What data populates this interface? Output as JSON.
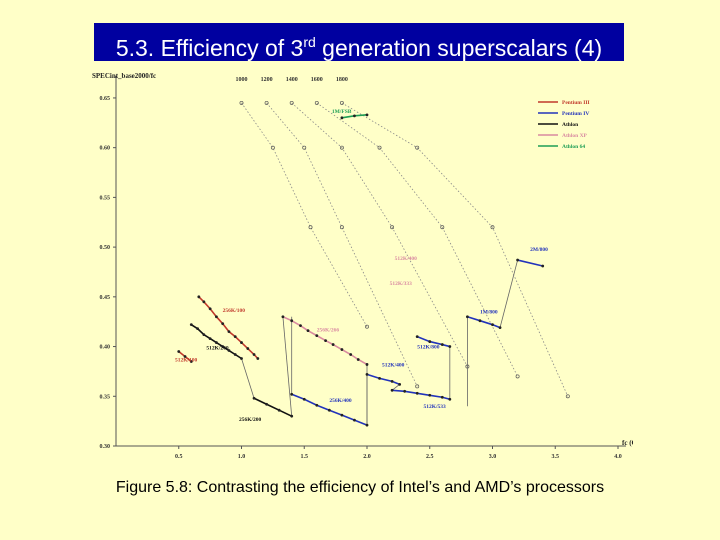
{
  "slide": {
    "title_main": "5.3. Efficiency of 3",
    "title_sup": "rd",
    "title_rest": " generation superscalars (4)",
    "caption": "Figure 5.8: Contrasting the efficiency of Intel’s and AMD’s processors"
  },
  "chart_data": {
    "type": "line",
    "ylabel": "SPECint_base2000/fc",
    "xlabel": "fc (GHz)",
    "xlim": [
      0.0,
      4.0
    ],
    "ylim": [
      0.3,
      0.66
    ],
    "xticks": [
      0.5,
      1.0,
      1.5,
      2.0,
      2.5,
      3.0,
      3.5,
      4.0
    ],
    "xtick_labels": [
      "0.5",
      "1.0",
      "1.5",
      "2.0",
      "2.5",
      "3.0",
      "3.5",
      "4.0"
    ],
    "yticks": [
      0.3,
      0.35,
      0.4,
      0.45,
      0.5,
      0.55,
      0.6,
      0.65
    ],
    "ytick_labels": [
      "0.30",
      "0.35",
      "0.40",
      "0.45",
      "0.50",
      "0.55",
      "0.60",
      "0.65"
    ],
    "top_labels": [
      {
        "x": 1.0,
        "text": "1000"
      },
      {
        "x": 1.2,
        "text": "1200"
      },
      {
        "x": 1.4,
        "text": "1400"
      },
      {
        "x": 1.6,
        "text": "1600"
      },
      {
        "x": 1.8,
        "text": "1800"
      }
    ],
    "legend": {
      "placement": "top-right",
      "entries": [
        {
          "name": "Pentium III",
          "color": "#c0392b"
        },
        {
          "name": "Pentium IV",
          "color": "#2233bb"
        },
        {
          "name": "Athlon",
          "color": "#111111"
        },
        {
          "name": "Athlon XP",
          "color": "#d98aa0"
        },
        {
          "name": "Athlon 64",
          "color": "#1e9e55"
        }
      ]
    },
    "series": [
      {
        "name": "Pentium III",
        "color": "#c0392b",
        "x": [
          0.5,
          0.55,
          0.6
        ],
        "y": [
          0.395,
          0.39,
          0.385
        ]
      },
      {
        "name": "Pentium III",
        "color": "#c0392b",
        "x": [
          0.66,
          0.7,
          0.75,
          0.8,
          0.85,
          0.9,
          0.95,
          1.0,
          1.05,
          1.1,
          1.13
        ],
        "y": [
          0.45,
          0.445,
          0.438,
          0.43,
          0.423,
          0.415,
          0.41,
          0.404,
          0.398,
          0.392,
          0.388
        ]
      },
      {
        "name": "Athlon",
        "color": "#111111",
        "x": [
          0.6,
          0.65,
          0.7,
          0.75,
          0.8,
          0.85,
          0.9,
          0.95,
          1.0
        ],
        "y": [
          0.422,
          0.418,
          0.412,
          0.408,
          0.404,
          0.4,
          0.396,
          0.392,
          0.388
        ]
      },
      {
        "name": "Athlon",
        "color": "#111111",
        "x": [
          1.1,
          1.2,
          1.3,
          1.4
        ],
        "y": [
          0.348,
          0.342,
          0.336,
          0.33
        ]
      },
      {
        "name": "Athlon XP",
        "color": "#d98aa0",
        "x": [
          1.33,
          1.4,
          1.47,
          1.53,
          1.6,
          1.67,
          1.73,
          1.8,
          1.87,
          1.93,
          2.0
        ],
        "y": [
          0.43,
          0.426,
          0.421,
          0.416,
          0.411,
          0.406,
          0.402,
          0.397,
          0.392,
          0.387,
          0.382
        ]
      },
      {
        "name": "Pentium IV",
        "color": "#2233bb",
        "x": [
          1.4,
          1.5,
          1.6,
          1.7,
          1.8,
          1.9,
          2.0
        ],
        "y": [
          0.352,
          0.347,
          0.341,
          0.336,
          0.331,
          0.326,
          0.321
        ]
      },
      {
        "name": "Pentium IV",
        "color": "#2233bb",
        "x": [
          2.0,
          2.1,
          2.2,
          2.26
        ],
        "y": [
          0.372,
          0.368,
          0.365,
          0.362
        ]
      },
      {
        "name": "Pentium IV",
        "color": "#2233bb",
        "x": [
          2.2,
          2.3,
          2.4,
          2.5,
          2.6,
          2.66
        ],
        "y": [
          0.356,
          0.355,
          0.353,
          0.351,
          0.349,
          0.347
        ]
      },
      {
        "name": "Pentium IV",
        "color": "#2233bb",
        "x": [
          2.4,
          2.5,
          2.6,
          2.66
        ],
        "y": [
          0.41,
          0.405,
          0.402,
          0.4
        ]
      },
      {
        "name": "Pentium IV",
        "color": "#2233bb",
        "x": [
          2.8,
          2.9,
          3.0,
          3.06
        ],
        "y": [
          0.43,
          0.426,
          0.422,
          0.419
        ]
      },
      {
        "name": "Pentium IV",
        "color": "#2233bb",
        "x": [
          3.2,
          3.4
        ],
        "y": [
          0.487,
          0.481
        ]
      },
      {
        "name": "Athlon 64",
        "color": "#1e9e55",
        "x": [
          1.8,
          1.9,
          2.0
        ],
        "y": [
          0.63,
          0.632,
          0.633
        ]
      }
    ],
    "connectors": [
      {
        "x": [
          1.0,
          1.1
        ],
        "y": [
          0.388,
          0.348
        ]
      },
      {
        "x": [
          1.4,
          1.33
        ],
        "y": [
          0.33,
          0.43
        ]
      },
      {
        "x": [
          1.4,
          1.4
        ],
        "y": [
          0.43,
          0.352
        ]
      },
      {
        "x": [
          2.0,
          2.0
        ],
        "y": [
          0.382,
          0.321
        ]
      },
      {
        "x": [
          2.0,
          2.0
        ],
        "y": [
          0.321,
          0.372
        ]
      },
      {
        "x": [
          2.26,
          2.2
        ],
        "y": [
          0.362,
          0.356
        ]
      },
      {
        "x": [
          2.66,
          2.66
        ],
        "y": [
          0.347,
          0.4
        ]
      },
      {
        "x": [
          2.8,
          2.8
        ],
        "y": [
          0.34,
          0.43
        ]
      },
      {
        "x": [
          3.06,
          3.2
        ],
        "y": [
          0.419,
          0.487
        ]
      }
    ],
    "iso_lines": [
      {
        "label": "1000",
        "x": [
          1.0,
          1.25,
          1.55,
          2.0
        ],
        "y": [
          0.645,
          0.6,
          0.52,
          0.42
        ]
      },
      {
        "label": "1200",
        "x": [
          1.2,
          1.5,
          1.8,
          2.4
        ],
        "y": [
          0.645,
          0.6,
          0.52,
          0.36
        ]
      },
      {
        "label": "1400",
        "x": [
          1.4,
          1.8,
          2.2,
          2.8
        ],
        "y": [
          0.645,
          0.6,
          0.52,
          0.38
        ]
      },
      {
        "label": "1600",
        "x": [
          1.6,
          2.1,
          2.6,
          3.2
        ],
        "y": [
          0.645,
          0.6,
          0.52,
          0.37
        ]
      },
      {
        "label": "1800",
        "x": [
          1.8,
          2.4,
          3.0,
          3.6
        ],
        "y": [
          0.645,
          0.6,
          0.52,
          0.35
        ]
      }
    ],
    "annotations": [
      {
        "text": "512K/100",
        "x": 0.47,
        "y": 0.385,
        "color": "#c0392b"
      },
      {
        "text": "256K/100",
        "x": 0.85,
        "y": 0.435,
        "color": "#c0392b"
      },
      {
        "text": "512K/200",
        "x": 0.72,
        "y": 0.397,
        "color": "#111111"
      },
      {
        "text": "256K/200",
        "x": 0.98,
        "y": 0.325,
        "color": "#111111"
      },
      {
        "text": "256K/266",
        "x": 1.6,
        "y": 0.415,
        "color": "#d98aa0"
      },
      {
        "text": "256K/400",
        "x": 1.7,
        "y": 0.344,
        "color": "#2233bb"
      },
      {
        "text": "512K/400",
        "x": 2.12,
        "y": 0.38,
        "color": "#2233bb"
      },
      {
        "text": "512K/333",
        "x": 2.18,
        "y": 0.462,
        "color": "#d98aa0"
      },
      {
        "text": "512K/400",
        "x": 2.22,
        "y": 0.487,
        "color": "#d98aa0"
      },
      {
        "text": "512K/800",
        "x": 2.4,
        "y": 0.398,
        "color": "#2233bb"
      },
      {
        "text": "512K/533",
        "x": 2.45,
        "y": 0.338,
        "color": "#2233bb"
      },
      {
        "text": "1M/800",
        "x": 2.9,
        "y": 0.433,
        "color": "#2233bb"
      },
      {
        "text": "2M/800",
        "x": 3.3,
        "y": 0.496,
        "color": "#2233bb"
      },
      {
        "text": "1M/FSB",
        "x": 1.72,
        "y": 0.635,
        "color": "#1e9e55"
      }
    ]
  }
}
